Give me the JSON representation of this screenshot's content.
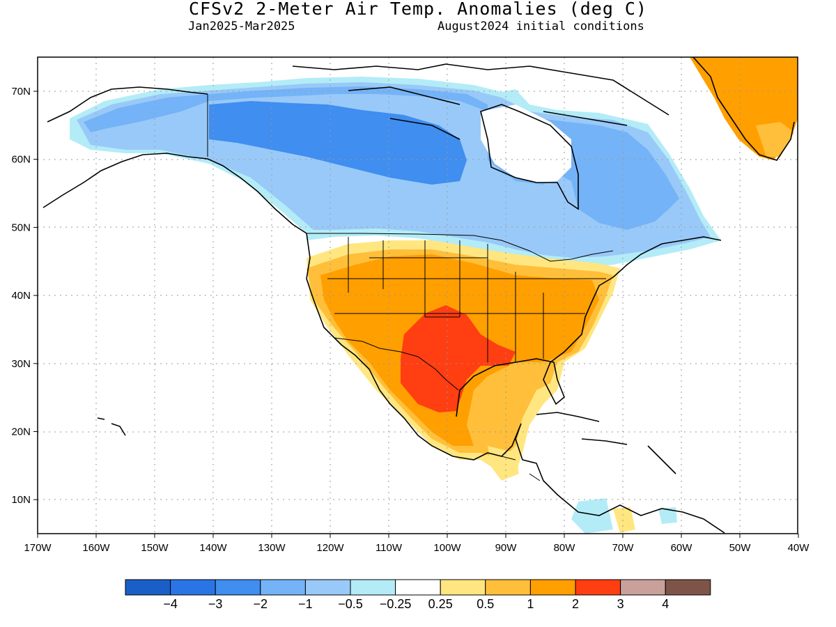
{
  "title": "CFSv2 2-Meter Air Temp. Anomalies (deg C)",
  "period": "Jan2025-Mar2025",
  "initial_conditions": "August2024 initial conditions",
  "lon_ticks": [
    "170W",
    "160W",
    "150W",
    "140W",
    "130W",
    "120W",
    "110W",
    "100W",
    "90W",
    "80W",
    "70W",
    "60W",
    "50W",
    "40W"
  ],
  "lat_ticks": [
    "70N",
    "60N",
    "50N",
    "40N",
    "30N",
    "20N",
    "10N"
  ],
  "colorbar": {
    "colors": [
      "#1a5fc7",
      "#2a75e5",
      "#3f8ef0",
      "#74b3f7",
      "#99c9f8",
      "#b3ecf7",
      "#ffffff",
      "#ffe680",
      "#ffbf3a",
      "#ff9f00",
      "#ff3e12",
      "#c9a19a",
      "#7f5448"
    ],
    "labels": [
      "−4",
      "−3",
      "−2",
      "−1",
      "−0.5",
      "−0.25",
      "0.25",
      "0.5",
      "1",
      "2",
      "3",
      "4"
    ]
  },
  "legend_colors": {
    "strong_warm": "#ff3e12",
    "warm": "#ff9f00",
    "mild_warm": "#ffbf3a",
    "slight_warm": "#ffe680",
    "cold": "#3f8ef0",
    "cool": "#74b3f7",
    "mild_cool": "#99c9f8",
    "slight_cool": "#b3ecf7"
  }
}
